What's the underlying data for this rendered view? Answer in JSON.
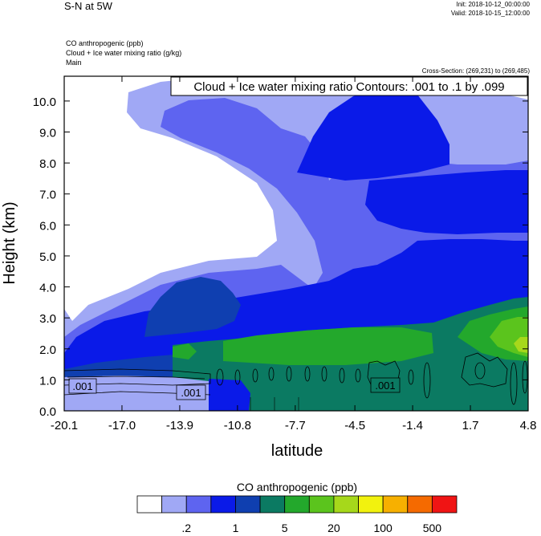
{
  "header": {
    "title": "S-N at 5W",
    "init": "Init: 2018-10-12_00:00:00",
    "valid": "Valid: 2018-10-15_12:00:00",
    "field1": "CO anthropogenic   (ppb)",
    "field2": "Cloud + Ice water mixing ratio   (g/kg)",
    "domain": "Main",
    "cross_section": "Cross-Section: (269,231) to (269,485)"
  },
  "chart_data": {
    "type": "heatmap",
    "title": "",
    "xlabel": "latitude",
    "ylabel": "Height (km)",
    "xlim": [
      -20.1,
      4.8
    ],
    "ylim": [
      0.0,
      10.8
    ],
    "x_ticks": [
      "-20.1",
      "-17.0",
      "-13.9",
      "-10.8",
      "-7.7",
      "-4.5",
      "-1.4",
      "1.7",
      "4.8"
    ],
    "y_ticks": [
      "0.0",
      "1.0",
      "2.0",
      "3.0",
      "4.0",
      "5.0",
      "6.0",
      "7.0",
      "8.0",
      "9.0",
      "10.0"
    ],
    "grid": false,
    "contour_title": "Cloud + Ice water mixing ratio Contours: .001 to .1 by .099",
    "contour_labels": [
      ".001",
      ".001",
      ".001"
    ],
    "colorbar": {
      "title": "CO anthropogenic  (ppb)",
      "labels": [
        ".2",
        "1",
        "5",
        "20",
        "100",
        "500"
      ],
      "colors": [
        "#ffffff",
        "#a0a8f5",
        "#5e64f0",
        "#0a1ae8",
        "#0f3fb0",
        "#0b7a62",
        "#23a82c",
        "#5bc41d",
        "#a6d81b",
        "#f2f20e",
        "#f7b000",
        "#f56a00",
        "#f01414"
      ]
    }
  }
}
